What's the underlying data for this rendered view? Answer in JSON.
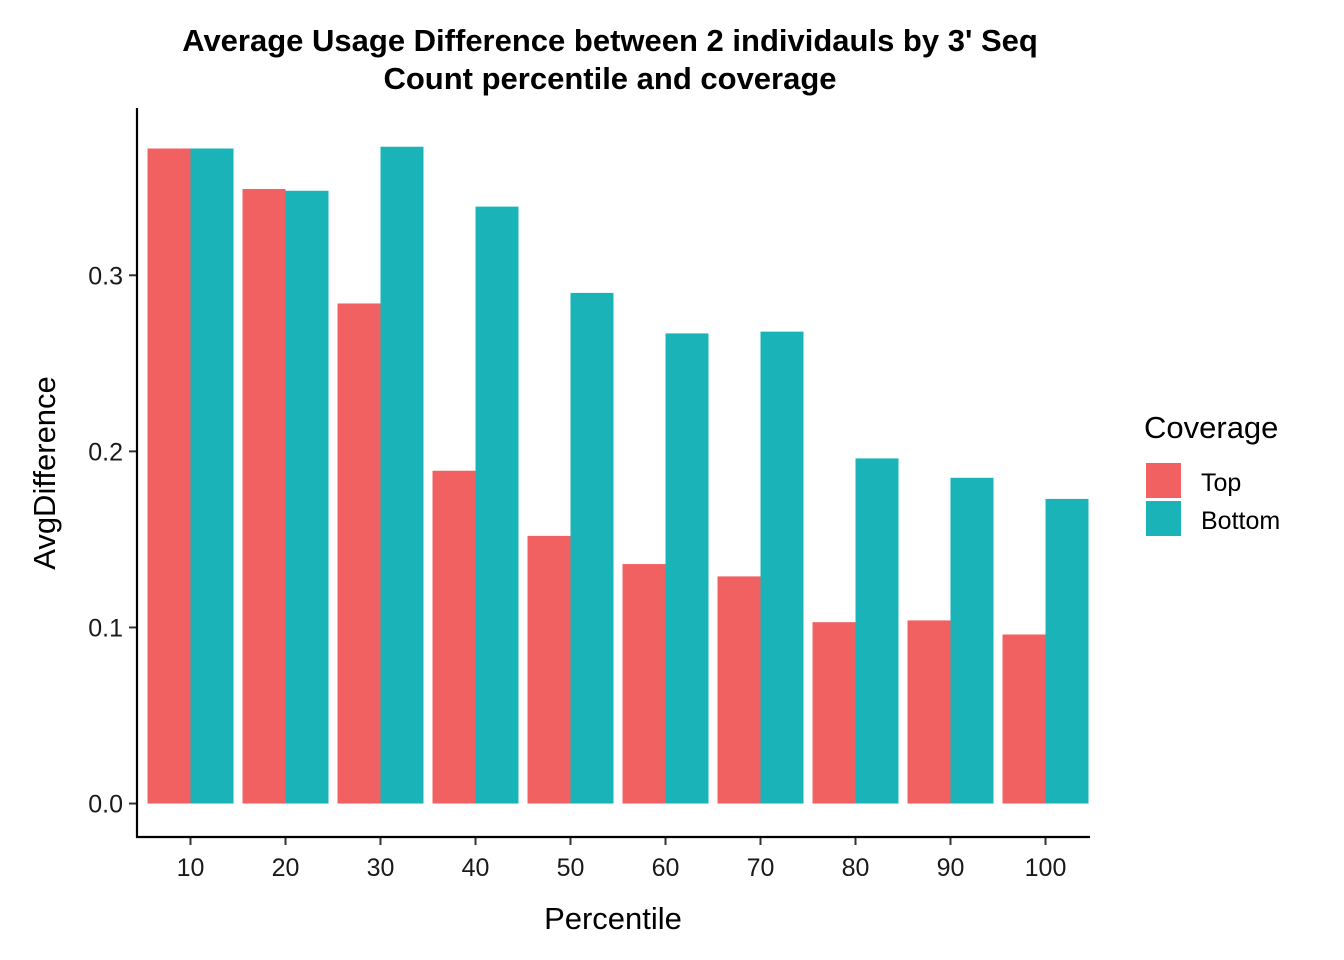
{
  "chart_data": {
    "type": "bar",
    "title": "Average Usage Difference between 2 individauls by 3' Seq",
    "subtitle": "Count percentile and coverage",
    "xlabel": "Percentile",
    "ylabel": "AvgDifference",
    "categories": [
      "10",
      "20",
      "30",
      "40",
      "50",
      "60",
      "70",
      "80",
      "90",
      "100"
    ],
    "series": [
      {
        "name": "Top",
        "color": "#F26161",
        "values": [
          0.372,
          0.349,
          0.284,
          0.189,
          0.152,
          0.136,
          0.129,
          0.103,
          0.104,
          0.096
        ]
      },
      {
        "name": "Bottom",
        "color": "#1AB4B8",
        "values": [
          0.372,
          0.348,
          0.373,
          0.339,
          0.29,
          0.267,
          0.268,
          0.196,
          0.185,
          0.173
        ]
      }
    ],
    "yticks": [
      0.0,
      0.1,
      0.2,
      0.3
    ],
    "ytick_labels": [
      "0.0",
      "0.1",
      "0.2",
      "0.3"
    ],
    "ylim": [
      -0.019,
      0.395
    ],
    "grid": false,
    "legend": {
      "title": "Coverage",
      "placement": "right"
    }
  }
}
